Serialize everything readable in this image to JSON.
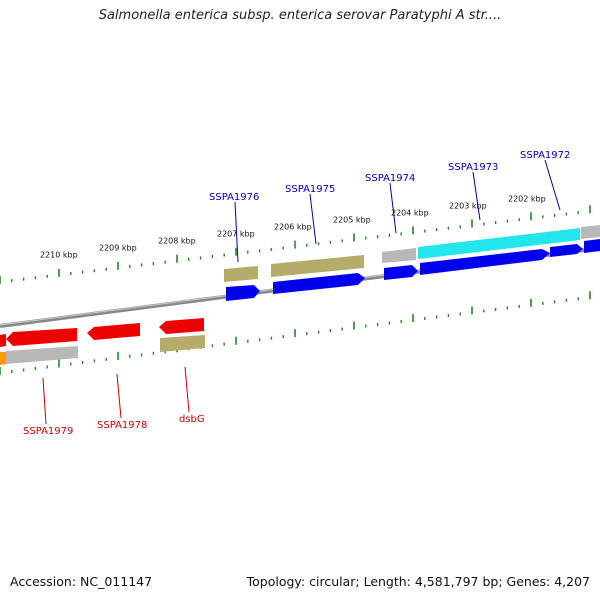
{
  "title": "Salmonella enterica subsp. enterica serovar Paratyphi A str....",
  "footer": {
    "accession": "Accession: NC_011147",
    "summary": "Topology: circular; Length: 4,581,797 bp; Genes: 4,207"
  },
  "colors": {
    "forward_cds": "#0000ee",
    "reverse_cds": "#ee0000",
    "gene_olive": "#b5ab6a",
    "gene_gray": "#b8b8b8",
    "gene_cyan": "#22e5ee",
    "gene_orange": "#ff9900",
    "tick": "#228822",
    "backbone": "#888888",
    "forward_label": "#0000aa",
    "reverse_label": "#cc0000"
  },
  "scale_labels": [
    "2210 kbp",
    "2209 kbp",
    "2208 kbp",
    "2207 kbp",
    "2206 kbp",
    "2205 kbp",
    "2204 kbp",
    "2203 kbp",
    "2202 kbp"
  ],
  "forward_gene_labels": [
    "SSPA1976",
    "SSPA1975",
    "SSPA1974",
    "SSPA1973",
    "SSPA1972"
  ],
  "reverse_gene_labels": [
    "SSPA1979",
    "SSPA1978",
    "dsbG"
  ]
}
